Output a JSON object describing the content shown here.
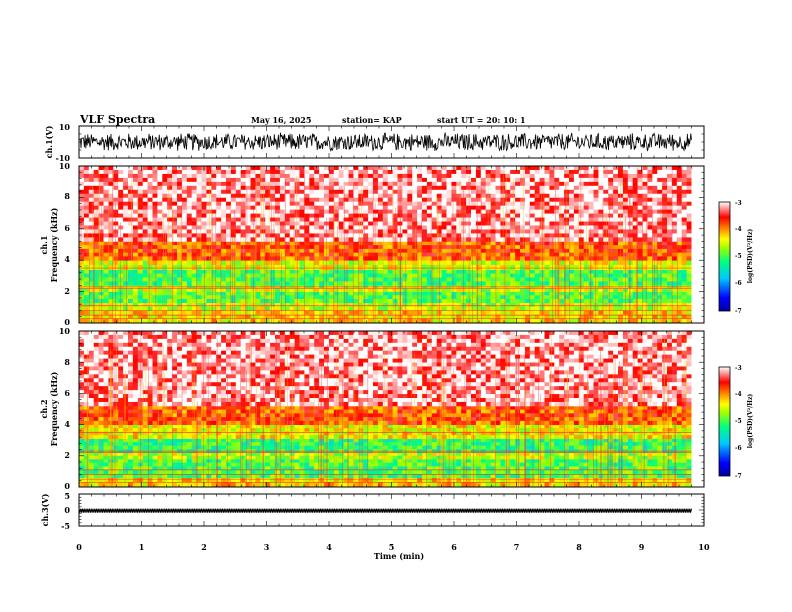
{
  "header": {
    "title": "VLF Spectra",
    "date": "May 16, 2025",
    "station": "station= KAP",
    "start": "start  UT  =   20: 10: 1"
  },
  "chart_data": [
    {
      "type": "line",
      "name": "ch1-waveform",
      "ylabel": "ch.1(V)",
      "ylim": [
        -10,
        10
      ],
      "ytick_labels": [
        "10",
        "-10"
      ],
      "xlim": [
        0,
        10
      ],
      "data_end_min": 9.8,
      "description_values": {
        "approx_amplitude_V": 6
      }
    },
    {
      "type": "heatmap",
      "name": "ch1-spectrogram",
      "ylabel_line1": "ch.1",
      "ylabel_line2": "Frequency  (kHz)",
      "ylim": [
        0,
        10
      ],
      "ytick_labels": [
        "0",
        "2",
        "4",
        "6",
        "8",
        "10"
      ],
      "xlim": [
        0,
        10
      ],
      "data_end_min": 9.8,
      "bands_kHz": [
        {
          "from": 0,
          "to": 0.8,
          "level": -4.3
        },
        {
          "from": 0.8,
          "to": 1.3,
          "level": -4.6
        },
        {
          "from": 1.3,
          "to": 2.0,
          "level": -5.0
        },
        {
          "from": 2.0,
          "to": 2.4,
          "level": -4.6
        },
        {
          "from": 2.4,
          "to": 3.4,
          "level": -5.0
        },
        {
          "from": 3.4,
          "to": 4.0,
          "level": -4.5
        },
        {
          "from": 4.0,
          "to": 5.2,
          "level": -3.8
        },
        {
          "from": 5.2,
          "to": 10,
          "level": -3.2
        }
      ],
      "colorbar": {
        "min": -7,
        "max": -3,
        "tick_labels": [
          "-3",
          "-4",
          "-5",
          "-6",
          "-7"
        ],
        "label": "log(PSD)(V²/Hz)"
      }
    },
    {
      "type": "heatmap",
      "name": "ch2-spectrogram",
      "ylabel_line1": "ch.2",
      "ylabel_line2": "Frequency  (kHz)",
      "ylim": [
        0,
        10
      ],
      "ytick_labels": [
        "0",
        "2",
        "4",
        "6",
        "8",
        "10"
      ],
      "xlim": [
        0,
        10
      ],
      "data_end_min": 9.8,
      "bands_kHz": [
        {
          "from": 0,
          "to": 0.6,
          "level": -4.3
        },
        {
          "from": 0.6,
          "to": 1.8,
          "level": -5.0
        },
        {
          "from": 1.8,
          "to": 2.2,
          "level": -4.6
        },
        {
          "from": 2.2,
          "to": 3.1,
          "level": -5.1
        },
        {
          "from": 3.1,
          "to": 4.0,
          "level": -4.4
        },
        {
          "from": 4.0,
          "to": 5.2,
          "level": -3.8
        },
        {
          "from": 5.2,
          "to": 10,
          "level": -3.2
        }
      ],
      "colorbar": {
        "min": -7,
        "max": -3,
        "tick_labels": [
          "-3",
          "-4",
          "-5",
          "-6",
          "-7"
        ],
        "label": "log(PSD)(V²/Hz)"
      }
    },
    {
      "type": "line",
      "name": "ch3-waveform",
      "ylabel": "ch.3(V)",
      "ylim": [
        -5,
        5
      ],
      "ytick_labels": [
        "5",
        "0",
        "-5"
      ],
      "xlim": [
        0,
        10
      ],
      "data_end_min": 9.8,
      "description_values": {
        "approx_center_V": -0.2,
        "approx_amplitude_V": 0.6
      }
    }
  ],
  "xaxis": {
    "label": "Time  (min)",
    "tick_labels": [
      "0",
      "1",
      "2",
      "3",
      "4",
      "5",
      "6",
      "7",
      "8",
      "9",
      "10"
    ]
  },
  "colors": {
    "colormap": [
      "#0000a0",
      "#0000ff",
      "#00c8ff",
      "#00ff80",
      "#a0ff00",
      "#ffff00",
      "#ff8000",
      "#ff0000",
      "#ffffff"
    ]
  }
}
